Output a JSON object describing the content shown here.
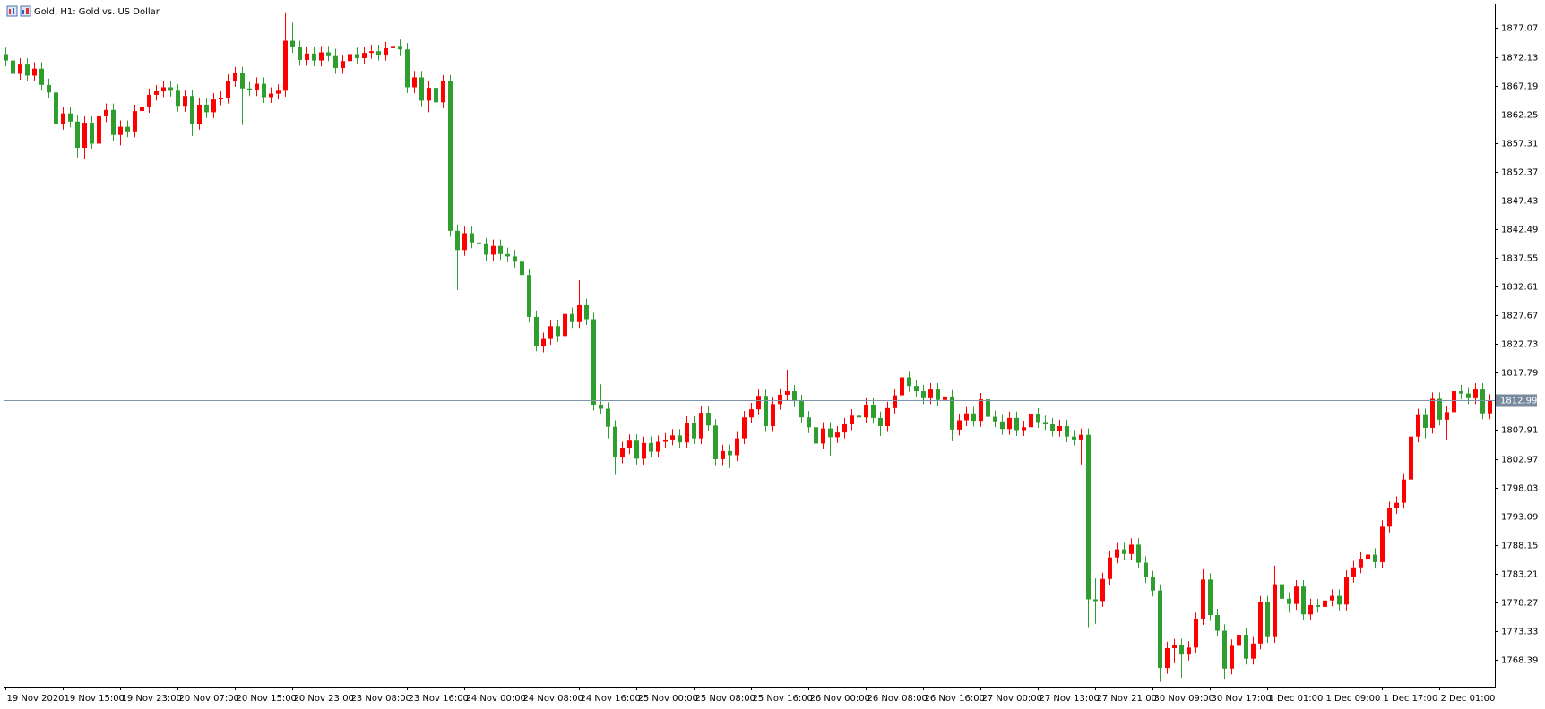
{
  "chart_data": {
    "type": "candlestick",
    "title": "Gold, H1:  Gold vs. US Dollar",
    "categories": [
      "19 Nov 2020",
      null,
      null,
      null,
      null,
      null,
      null,
      null,
      "19 Nov 15:00",
      null,
      null,
      null,
      null,
      null,
      null,
      null,
      "19 Nov 23:00",
      null,
      null,
      null,
      null,
      null,
      null,
      null,
      "20 Nov 07:00",
      null,
      null,
      null,
      null,
      null,
      null,
      null,
      "20 Nov 15:00",
      null,
      null,
      null,
      null,
      null,
      null,
      null,
      "20 Nov 23:00",
      null,
      null,
      null,
      null,
      null,
      null,
      null,
      "23 Nov 08:00",
      null,
      null,
      null,
      null,
      null,
      null,
      null,
      "23 Nov 16:00",
      null,
      null,
      null,
      null,
      null,
      null,
      null,
      "24 Nov 00:00",
      null,
      null,
      null,
      null,
      null,
      null,
      null,
      "24 Nov 08:00",
      null,
      null,
      null,
      null,
      null,
      null,
      null,
      "24 Nov 16:00",
      null,
      null,
      null,
      null,
      null,
      null,
      null,
      "25 Nov 00:00",
      null,
      null,
      null,
      null,
      null,
      null,
      null,
      "25 Nov 08:00",
      null,
      null,
      null,
      null,
      null,
      null,
      null,
      "25 Nov 16:00",
      null,
      null,
      null,
      null,
      null,
      null,
      null,
      "26 Nov 00:00",
      null,
      null,
      null,
      null,
      null,
      null,
      null,
      "26 Nov 08:00",
      null,
      null,
      null,
      null,
      null,
      null,
      null,
      "26 Nov 16:00",
      null,
      null,
      null,
      null,
      null,
      null,
      null,
      "27 Nov 00:00",
      null,
      null,
      null,
      null,
      null,
      null,
      null,
      "27 Nov 13:00",
      null,
      null,
      null,
      null,
      null,
      null,
      null,
      "27 Nov 21:00",
      null,
      null,
      null,
      null,
      null,
      null,
      null,
      "30 Nov 09:00",
      null,
      null,
      null,
      null,
      null,
      null,
      null,
      "30 Nov 17:00",
      null,
      null,
      null,
      null,
      null,
      null,
      null,
      "1 Dec 01:00",
      null,
      null,
      null,
      null,
      null,
      null,
      null,
      "1 Dec 09:00",
      null,
      null,
      null,
      null,
      null,
      null,
      null,
      "1 Dec 17:00",
      null,
      null,
      null,
      null,
      null,
      null,
      null,
      "2 Dec 01:00",
      null,
      null,
      null,
      null,
      null,
      null,
      null
    ],
    "open": [
      1872.6,
      1871.5,
      1869.2,
      1870.8,
      1868.9,
      1870.1,
      1867.3,
      1866.0,
      1860.6,
      1862.4,
      1861.0,
      1856.5,
      1860.8,
      1857.2,
      1861.9,
      1863.0,
      1858.7,
      1860.1,
      1859.3,
      1862.8,
      1863.5,
      1865.6,
      1866.2,
      1866.9,
      1866.3,
      1863.7,
      1865.4,
      1860.6,
      1863.9,
      1862.6,
      1864.8,
      1865.1,
      1868.0,
      1869.3,
      1866.7,
      1866.4,
      1867.5,
      1865.2,
      1865.8,
      1866.3,
      1874.9,
      1873.8,
      1871.6,
      1872.7,
      1871.5,
      1872.9,
      1872.4,
      1870.2,
      1871.4,
      1872.6,
      1871.9,
      1872.8,
      1873.1,
      1872.5,
      1873.6,
      1874.0,
      1873.4,
      1866.9,
      1868.6,
      1864.6,
      1866.8,
      1864.3,
      1867.9,
      1842.2,
      1838.9,
      1841.8,
      1840.2,
      1839.9,
      1838.1,
      1839.6,
      1838.2,
      1837.8,
      1836.9,
      1834.6,
      1827.4,
      1822.3,
      1823.6,
      1825.8,
      1824.1,
      1827.9,
      1826.5,
      1829.4,
      1827.0,
      1812.3,
      1811.6,
      1808.5,
      1803.2,
      1804.8,
      1806.1,
      1803.0,
      1805.7,
      1804.2,
      1805.9,
      1806.3,
      1807.0,
      1805.8,
      1809.2,
      1806.5,
      1810.9,
      1808.7,
      1802.9,
      1804.3,
      1803.6,
      1806.5,
      1810.1,
      1811.5,
      1813.8,
      1808.6,
      1812.4,
      1814.0,
      1814.6,
      1812.9,
      1810.1,
      1808.4,
      1805.6,
      1808.2,
      1806.7,
      1807.5,
      1808.9,
      1810.4,
      1810.1,
      1812.3,
      1810.0,
      1808.6,
      1811.7,
      1813.9,
      1817.0,
      1815.5,
      1814.6,
      1813.4,
      1814.9,
      1813.1,
      1813.7,
      1808.0,
      1809.6,
      1810.8,
      1809.5,
      1813.2,
      1810.2,
      1809.4,
      1808.1,
      1810.0,
      1807.9,
      1808.4,
      1810.6,
      1809.3,
      1808.9,
      1807.8,
      1808.6,
      1806.8,
      1806.3,
      1807.1,
      1778.8,
      1778.5,
      1782.3,
      1786.0,
      1787.4,
      1786.6,
      1788.2,
      1785.1,
      1782.6,
      1780.3,
      1767.0,
      1770.4,
      1770.9,
      1769.3,
      1770.5,
      1775.4,
      1782.2,
      1776.1,
      1773.4,
      1766.9,
      1770.8,
      1772.7,
      1768.6,
      1771.2,
      1778.3,
      1772.3,
      1781.4,
      1778.9,
      1778.0,
      1781.0,
      1776.2,
      1777.8,
      1777.5,
      1778.6,
      1779.4,
      1777.9,
      1782.7,
      1784.3,
      1785.8,
      1786.5,
      1785.2,
      1791.3,
      1794.5,
      1795.4,
      1799.4,
      1806.8,
      1810.5,
      1808.3,
      1813.3,
      1809.7,
      1811.0,
      1814.6,
      1814.2,
      1813.4,
      1814.9,
      1810.8
    ],
    "high": [
      1873.7,
      1872.6,
      1871.9,
      1871.9,
      1871.2,
      1871.2,
      1868.4,
      1867.1,
      1863.5,
      1863.5,
      1862.1,
      1861.9,
      1861.9,
      1863.0,
      1864.1,
      1864.1,
      1861.2,
      1861.2,
      1863.9,
      1864.6,
      1866.7,
      1867.3,
      1868.0,
      1868.0,
      1867.4,
      1866.5,
      1866.5,
      1865.0,
      1865.0,
      1865.9,
      1866.2,
      1869.1,
      1870.4,
      1870.4,
      1867.8,
      1868.6,
      1868.6,
      1866.9,
      1867.4,
      1879.8,
      1878.0,
      1874.9,
      1873.8,
      1873.8,
      1874.0,
      1874.0,
      1873.5,
      1872.5,
      1873.7,
      1873.7,
      1873.9,
      1874.2,
      1874.2,
      1874.7,
      1875.6,
      1875.1,
      1874.5,
      1869.7,
      1869.7,
      1867.9,
      1867.9,
      1869.0,
      1869.0,
      1843.3,
      1842.9,
      1842.9,
      1841.3,
      1841.0,
      1840.7,
      1840.7,
      1839.3,
      1838.9,
      1838.0,
      1835.7,
      1828.5,
      1824.7,
      1826.9,
      1826.9,
      1829.0,
      1829.0,
      1833.7,
      1830.5,
      1828.1,
      1815.8,
      1812.7,
      1809.6,
      1805.9,
      1807.2,
      1807.2,
      1806.8,
      1806.8,
      1807.0,
      1807.4,
      1808.1,
      1808.1,
      1810.3,
      1810.3,
      1812.0,
      1812.0,
      1809.8,
      1805.4,
      1805.4,
      1807.6,
      1811.2,
      1812.6,
      1814.9,
      1814.9,
      1813.5,
      1815.1,
      1818.3,
      1815.7,
      1814.0,
      1811.2,
      1809.5,
      1809.3,
      1809.3,
      1808.6,
      1810.0,
      1811.5,
      1811.5,
      1813.4,
      1813.4,
      1811.1,
      1812.8,
      1815.0,
      1818.8,
      1818.1,
      1816.6,
      1815.7,
      1816.0,
      1816.0,
      1814.8,
      1814.8,
      1810.7,
      1811.9,
      1811.9,
      1814.3,
      1814.3,
      1811.3,
      1810.5,
      1811.1,
      1811.1,
      1809.5,
      1811.7,
      1811.7,
      1810.4,
      1810.0,
      1809.7,
      1809.7,
      1807.9,
      1808.2,
      1808.2,
      1782.4,
      1783.4,
      1787.1,
      1788.5,
      1788.5,
      1789.3,
      1789.3,
      1786.2,
      1783.7,
      1781.4,
      1771.5,
      1772.0,
      1772.0,
      1771.6,
      1776.5,
      1784.0,
      1783.3,
      1777.2,
      1774.5,
      1771.9,
      1773.8,
      1773.8,
      1772.3,
      1779.4,
      1779.4,
      1784.6,
      1782.5,
      1780.0,
      1782.1,
      1782.1,
      1778.9,
      1778.9,
      1779.7,
      1780.5,
      1780.5,
      1783.8,
      1785.4,
      1786.9,
      1787.6,
      1787.6,
      1792.4,
      1795.6,
      1796.5,
      1800.5,
      1807.9,
      1811.6,
      1811.6,
      1814.4,
      1814.4,
      1812.1,
      1817.4,
      1815.7,
      1815.3,
      1816.0,
      1816.0,
      1814.1
    ],
    "low": [
      1870.5,
      1868.2,
      1868.2,
      1867.9,
      1867.9,
      1866.3,
      1865.0,
      1855.0,
      1859.6,
      1860.0,
      1854.8,
      1854.5,
      1856.2,
      1852.6,
      1860.9,
      1857.7,
      1856.9,
      1858.3,
      1858.3,
      1861.8,
      1862.5,
      1864.6,
      1865.2,
      1865.3,
      1862.7,
      1862.7,
      1858.5,
      1859.6,
      1861.6,
      1861.6,
      1863.8,
      1864.1,
      1867.0,
      1860.4,
      1865.4,
      1865.4,
      1864.2,
      1864.2,
      1864.8,
      1865.3,
      1872.8,
      1870.6,
      1870.6,
      1870.5,
      1870.5,
      1871.4,
      1869.2,
      1869.2,
      1870.4,
      1870.9,
      1870.9,
      1871.8,
      1871.5,
      1871.5,
      1872.6,
      1872.4,
      1865.9,
      1865.9,
      1863.6,
      1862.6,
      1863.3,
      1863.3,
      1841.2,
      1832.0,
      1837.9,
      1839.2,
      1838.9,
      1837.1,
      1837.1,
      1837.2,
      1836.8,
      1835.9,
      1833.6,
      1826.4,
      1821.5,
      1821.3,
      1822.6,
      1823.1,
      1823.1,
      1825.5,
      1825.5,
      1826.0,
      1811.3,
      1810.6,
      1806.5,
      1800.2,
      1802.2,
      1803.8,
      1802.0,
      1802.0,
      1803.2,
      1803.2,
      1804.9,
      1805.3,
      1804.8,
      1804.8,
      1805.5,
      1805.5,
      1807.7,
      1801.9,
      1801.9,
      1801.4,
      1802.6,
      1805.5,
      1809.1,
      1810.5,
      1807.6,
      1807.6,
      1811.4,
      1813.0,
      1811.9,
      1809.1,
      1807.4,
      1804.6,
      1804.6,
      1803.5,
      1805.7,
      1806.5,
      1807.9,
      1809.1,
      1809.1,
      1809.0,
      1806.9,
      1807.6,
      1810.7,
      1812.9,
      1814.5,
      1813.6,
      1812.4,
      1812.4,
      1812.1,
      1812.1,
      1806.0,
      1807.0,
      1808.6,
      1808.5,
      1808.5,
      1809.2,
      1808.4,
      1807.1,
      1807.1,
      1806.9,
      1806.9,
      1802.6,
      1808.3,
      1807.9,
      1806.8,
      1806.8,
      1805.8,
      1805.3,
      1802.0,
      1774.0,
      1774.6,
      1777.5,
      1781.3,
      1785.0,
      1785.6,
      1785.6,
      1784.1,
      1781.6,
      1779.3,
      1764.6,
      1766.0,
      1767.8,
      1765.3,
      1768.3,
      1769.5,
      1774.4,
      1775.1,
      1772.4,
      1765.0,
      1765.9,
      1769.8,
      1767.6,
      1767.6,
      1770.2,
      1771.3,
      1771.3,
      1777.9,
      1776.5,
      1777.0,
      1775.2,
      1775.2,
      1776.5,
      1776.5,
      1777.6,
      1776.9,
      1776.9,
      1781.7,
      1783.3,
      1784.8,
      1784.2,
      1784.2,
      1790.3,
      1793.5,
      1794.4,
      1798.4,
      1805.8,
      1806.5,
      1807.3,
      1808.7,
      1806.3,
      1810.0,
      1813.2,
      1812.4,
      1812.4,
      1809.8,
      1809.8
    ],
    "close": [
      1871.5,
      1869.2,
      1870.8,
      1868.9,
      1870.1,
      1867.3,
      1866.0,
      1860.6,
      1862.4,
      1861.0,
      1856.5,
      1860.8,
      1857.2,
      1861.9,
      1863.0,
      1858.7,
      1860.1,
      1859.3,
      1862.8,
      1863.5,
      1865.6,
      1866.2,
      1866.9,
      1866.3,
      1863.7,
      1865.4,
      1860.6,
      1863.9,
      1862.6,
      1864.8,
      1865.1,
      1868.0,
      1869.3,
      1866.7,
      1866.4,
      1867.5,
      1865.2,
      1865.8,
      1866.3,
      1874.9,
      1873.8,
      1871.6,
      1872.7,
      1871.5,
      1872.9,
      1872.4,
      1870.2,
      1871.4,
      1872.6,
      1871.9,
      1872.8,
      1873.1,
      1872.5,
      1873.6,
      1874.0,
      1873.4,
      1866.9,
      1868.6,
      1864.6,
      1866.8,
      1864.3,
      1867.9,
      1842.2,
      1838.9,
      1841.8,
      1840.2,
      1839.9,
      1838.1,
      1839.6,
      1838.2,
      1837.8,
      1836.9,
      1834.6,
      1827.4,
      1822.3,
      1823.6,
      1825.8,
      1824.1,
      1827.9,
      1826.5,
      1829.4,
      1827.0,
      1812.3,
      1811.6,
      1808.5,
      1803.2,
      1804.8,
      1806.1,
      1803.0,
      1805.7,
      1804.2,
      1805.9,
      1806.3,
      1807.0,
      1805.8,
      1809.2,
      1806.5,
      1810.9,
      1808.7,
      1802.9,
      1804.3,
      1803.6,
      1806.5,
      1810.1,
      1811.5,
      1813.8,
      1808.6,
      1812.4,
      1814.0,
      1814.6,
      1812.9,
      1810.1,
      1808.4,
      1805.6,
      1808.2,
      1806.7,
      1807.5,
      1808.9,
      1810.4,
      1810.1,
      1812.3,
      1810.0,
      1808.6,
      1811.7,
      1813.9,
      1817.0,
      1815.5,
      1814.6,
      1813.4,
      1814.9,
      1813.1,
      1813.7,
      1808.0,
      1809.6,
      1810.8,
      1809.5,
      1813.2,
      1810.2,
      1809.4,
      1808.1,
      1810.0,
      1807.9,
      1808.4,
      1810.6,
      1809.3,
      1808.9,
      1807.8,
      1808.6,
      1806.8,
      1806.3,
      1807.1,
      1778.8,
      1778.5,
      1782.3,
      1786.0,
      1787.4,
      1786.6,
      1788.2,
      1785.1,
      1782.6,
      1780.3,
      1767.0,
      1770.4,
      1770.9,
      1769.3,
      1770.5,
      1775.4,
      1782.2,
      1776.1,
      1773.4,
      1766.9,
      1770.8,
      1772.7,
      1768.6,
      1771.2,
      1778.3,
      1772.3,
      1781.4,
      1778.9,
      1778.0,
      1781.0,
      1776.2,
      1777.8,
      1777.5,
      1778.6,
      1779.4,
      1777.9,
      1782.7,
      1784.3,
      1785.8,
      1786.5,
      1785.2,
      1791.3,
      1794.5,
      1795.4,
      1799.4,
      1806.8,
      1810.5,
      1808.3,
      1813.3,
      1809.7,
      1811.0,
      1814.6,
      1814.2,
      1813.4,
      1814.9,
      1810.8,
      1812.99
    ],
    "up_color": "#ff0000",
    "down_color": "#2e9e2e",
    "last_price": 1812.99,
    "ylim": [
      1763.78,
      1881.14
    ],
    "yticks": [
      1877.07,
      1872.13,
      1867.19,
      1862.25,
      1857.31,
      1852.37,
      1847.43,
      1842.49,
      1837.55,
      1832.61,
      1827.67,
      1822.73,
      1817.79,
      1807.91,
      1802.97,
      1798.03,
      1793.09,
      1788.15,
      1783.21,
      1778.27,
      1773.33,
      1768.39
    ]
  }
}
